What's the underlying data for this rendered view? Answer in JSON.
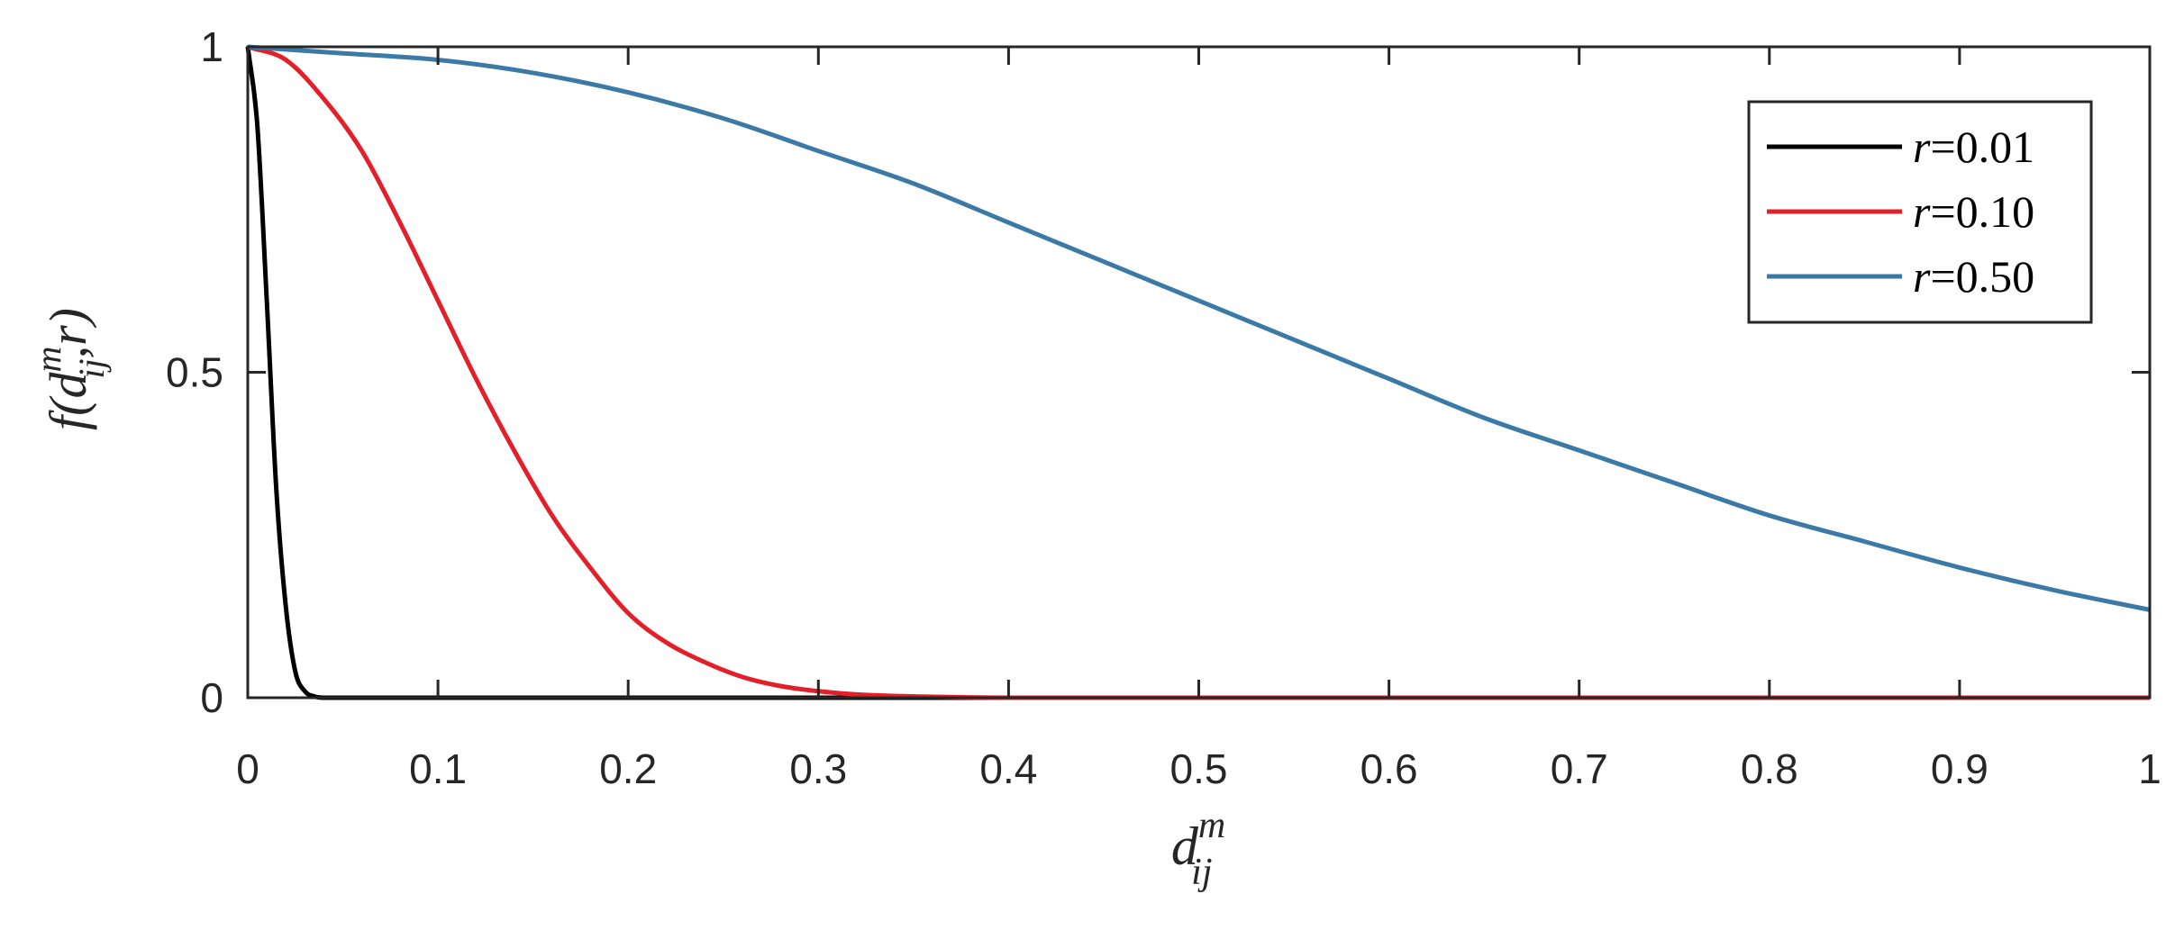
{
  "chart_data": {
    "type": "line",
    "xlabel": {
      "base": "d",
      "sup": "m",
      "sub": "ij"
    },
    "ylabel": {
      "prefix": "f(",
      "base": "d",
      "sup": "m",
      "sub": "ij",
      "suffix": ",r)"
    },
    "xlim": [
      0,
      1
    ],
    "ylim": [
      0,
      1
    ],
    "x_ticks": [
      "0",
      "0.1",
      "0.2",
      "0.3",
      "0.4",
      "0.5",
      "0.6",
      "0.7",
      "0.8",
      "0.9",
      "1"
    ],
    "y_ticks": [
      "0",
      "0.5",
      "1"
    ],
    "grid": false,
    "legend_position": "top-right",
    "series": [
      {
        "name": "r=0.01",
        "name_var": "r",
        "name_value": "=0.01",
        "color": "#000000",
        "x": [
          0,
          0.005,
          0.01,
          0.015,
          0.02,
          0.025,
          0.03,
          0.035,
          0.04,
          0.05,
          0.1,
          0.2,
          0.3,
          0.4,
          0.5,
          0.6,
          0.7,
          0.8,
          0.9,
          1.0
        ],
        "y": [
          1.0,
          0.88,
          0.61,
          0.32,
          0.14,
          0.04,
          0.01,
          0.002,
          0.0,
          0.0,
          0.0,
          0.0,
          0.0,
          0.0,
          0.0,
          0.0,
          0.0,
          0.0,
          0.0,
          0.0
        ]
      },
      {
        "name": "r=0.10",
        "name_var": "r",
        "name_value": "=0.10",
        "color": "#e3202a",
        "x": [
          0,
          0.02,
          0.04,
          0.06,
          0.08,
          0.1,
          0.12,
          0.14,
          0.16,
          0.18,
          0.2,
          0.22,
          0.24,
          0.26,
          0.28,
          0.3,
          0.32,
          0.35,
          0.38,
          0.4,
          0.45,
          0.5,
          0.6,
          0.7,
          0.8,
          0.9,
          1.0
        ],
        "y": [
          1.0,
          0.98,
          0.92,
          0.84,
          0.73,
          0.61,
          0.49,
          0.38,
          0.28,
          0.2,
          0.13,
          0.085,
          0.055,
          0.032,
          0.018,
          0.01,
          0.005,
          0.002,
          0.0005,
          0.0,
          0.0,
          0.0,
          0.0,
          0.0,
          0.0,
          0.0,
          0.0
        ]
      },
      {
        "name": "r=0.50",
        "name_var": "r",
        "name_value": "=0.50",
        "color": "#3b7aa6",
        "x": [
          0,
          0.05,
          0.1,
          0.15,
          0.2,
          0.25,
          0.3,
          0.35,
          0.4,
          0.45,
          0.5,
          0.55,
          0.6,
          0.65,
          0.7,
          0.75,
          0.8,
          0.85,
          0.9,
          0.95,
          1.0
        ],
        "y": [
          1.0,
          0.99,
          0.98,
          0.96,
          0.93,
          0.89,
          0.84,
          0.79,
          0.73,
          0.67,
          0.61,
          0.55,
          0.49,
          0.43,
          0.38,
          0.33,
          0.28,
          0.24,
          0.2,
          0.165,
          0.135
        ]
      }
    ]
  }
}
